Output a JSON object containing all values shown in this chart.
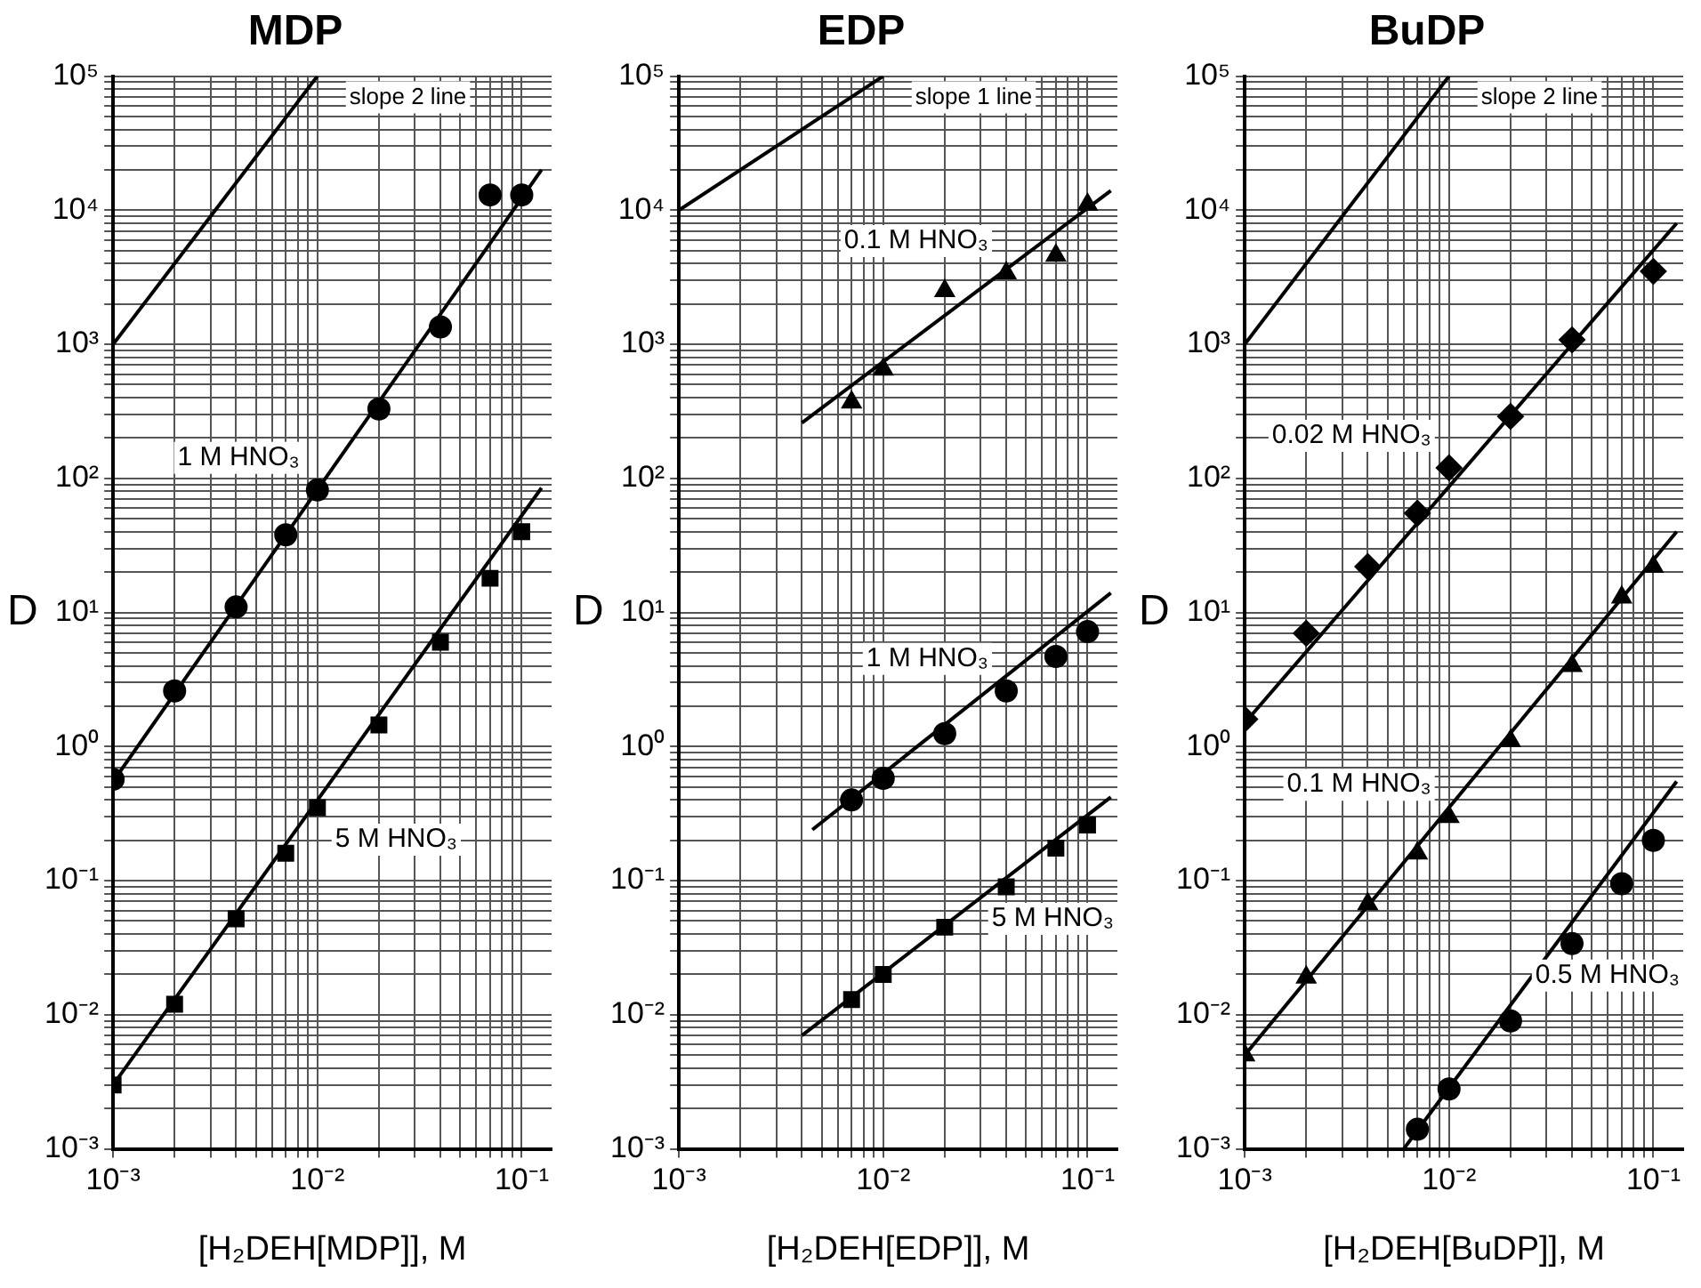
{
  "chart_data": [
    {
      "type": "scatter",
      "title": "MDP",
      "xlabel": "[H₂DEH[MDP]], M",
      "ylabel": "D",
      "log": "xy",
      "grid": true,
      "legend": false,
      "xlim": [
        0.001,
        0.14
      ],
      "ylim": [
        0.001,
        100000
      ],
      "xticks": [
        {
          "value": 0.001,
          "label": "10⁻³"
        },
        {
          "value": 0.002,
          "label": null
        },
        {
          "value": 0.003,
          "label": null
        },
        {
          "value": 0.004,
          "label": null
        },
        {
          "value": 0.005,
          "label": null
        },
        {
          "value": 0.006,
          "label": null
        },
        {
          "value": 0.007,
          "label": null
        },
        {
          "value": 0.008,
          "label": null
        },
        {
          "value": 0.009,
          "label": null
        },
        {
          "value": 0.01,
          "label": "10⁻²"
        },
        {
          "value": 0.02,
          "label": null
        },
        {
          "value": 0.03,
          "label": null
        },
        {
          "value": 0.04,
          "label": null
        },
        {
          "value": 0.05,
          "label": null
        },
        {
          "value": 0.06,
          "label": null
        },
        {
          "value": 0.07,
          "label": null
        },
        {
          "value": 0.08,
          "label": null
        },
        {
          "value": 0.09,
          "label": null
        },
        {
          "value": 0.1,
          "label": "10⁻¹"
        }
      ],
      "yticks": [
        {
          "value": 0.001,
          "label": "10⁻³"
        },
        {
          "value": 0.002,
          "label": null
        },
        {
          "value": 0.003,
          "label": null
        },
        {
          "value": 0.004,
          "label": null
        },
        {
          "value": 0.005,
          "label": null
        },
        {
          "value": 0.006,
          "label": null
        },
        {
          "value": 0.007,
          "label": null
        },
        {
          "value": 0.008,
          "label": null
        },
        {
          "value": 0.009,
          "label": null
        },
        {
          "value": 0.01,
          "label": "10⁻²"
        },
        {
          "value": 0.02,
          "label": null
        },
        {
          "value": 0.03,
          "label": null
        },
        {
          "value": 0.04,
          "label": null
        },
        {
          "value": 0.05,
          "label": null
        },
        {
          "value": 0.06,
          "label": null
        },
        {
          "value": 0.07,
          "label": null
        },
        {
          "value": 0.08,
          "label": null
        },
        {
          "value": 0.09,
          "label": null
        },
        {
          "value": 0.1,
          "label": "10⁻¹"
        },
        {
          "value": 0.2,
          "label": null
        },
        {
          "value": 0.3,
          "label": null
        },
        {
          "value": 0.4,
          "label": null
        },
        {
          "value": 0.5,
          "label": null
        },
        {
          "value": 0.6,
          "label": null
        },
        {
          "value": 0.7,
          "label": null
        },
        {
          "value": 0.8,
          "label": null
        },
        {
          "value": 0.9,
          "label": null
        },
        {
          "value": 1,
          "label": "10⁰"
        },
        {
          "value": 2,
          "label": null
        },
        {
          "value": 3,
          "label": null
        },
        {
          "value": 4,
          "label": null
        },
        {
          "value": 5,
          "label": null
        },
        {
          "value": 6,
          "label": null
        },
        {
          "value": 7,
          "label": null
        },
        {
          "value": 8,
          "label": null
        },
        {
          "value": 9,
          "label": null
        },
        {
          "value": 10,
          "label": "10¹"
        },
        {
          "value": 20,
          "label": null
        },
        {
          "value": 30,
          "label": null
        },
        {
          "value": 40,
          "label": null
        },
        {
          "value": 50,
          "label": null
        },
        {
          "value": 60,
          "label": null
        },
        {
          "value": 70,
          "label": null
        },
        {
          "value": 80,
          "label": null
        },
        {
          "value": 90,
          "label": null
        },
        {
          "value": 100,
          "label": "10²"
        },
        {
          "value": 200,
          "label": null
        },
        {
          "value": 300,
          "label": null
        },
        {
          "value": 400,
          "label": null
        },
        {
          "value": 500,
          "label": null
        },
        {
          "value": 600,
          "label": null
        },
        {
          "value": 700,
          "label": null
        },
        {
          "value": 800,
          "label": null
        },
        {
          "value": 900,
          "label": null
        },
        {
          "value": 1000,
          "label": "10³"
        },
        {
          "value": 2000,
          "label": null
        },
        {
          "value": 3000,
          "label": null
        },
        {
          "value": 4000,
          "label": null
        },
        {
          "value": 5000,
          "label": null
        },
        {
          "value": 6000,
          "label": null
        },
        {
          "value": 7000,
          "label": null
        },
        {
          "value": 8000,
          "label": null
        },
        {
          "value": 9000,
          "label": null
        },
        {
          "value": 10000,
          "label": "10⁴"
        },
        {
          "value": 20000,
          "label": null
        },
        {
          "value": 30000,
          "label": null
        },
        {
          "value": 40000,
          "label": null
        },
        {
          "value": 50000,
          "label": null
        },
        {
          "value": 60000,
          "label": null
        },
        {
          "value": 70000,
          "label": null
        },
        {
          "value": 80000,
          "label": null
        },
        {
          "value": 90000,
          "label": null
        },
        {
          "value": 100000,
          "label": "10⁵"
        }
      ],
      "series": [
        {
          "type": "line",
          "name": "slope 2 line",
          "color": "#000000",
          "x": [
            0.001,
            0.01
          ],
          "values": [
            1000,
            100000
          ]
        },
        {
          "name": "1 M HNO₃",
          "marker": "circle",
          "color": "#000000",
          "x": [
            0.001,
            0.002,
            0.004,
            0.007,
            0.01,
            0.02,
            0.04,
            0.07,
            0.1
          ],
          "values": [
            0.57,
            2.6,
            11,
            38,
            82,
            330,
            1350,
            13000,
            13000
          ]
        },
        {
          "type": "line",
          "color": "#000000",
          "x": [
            0.001,
            0.125
          ],
          "values": [
            0.55,
            20000
          ]
        },
        {
          "name": "5 M HNO₃",
          "marker": "square",
          "color": "#000000",
          "x": [
            0.001,
            0.002,
            0.004,
            0.007,
            0.01,
            0.02,
            0.04,
            0.07,
            0.1
          ],
          "values": [
            0.003,
            0.012,
            0.052,
            0.16,
            0.35,
            1.45,
            6,
            18,
            40
          ]
        },
        {
          "type": "line",
          "color": "#000000",
          "x": [
            0.001,
            0.125
          ],
          "values": [
            0.003,
            85
          ]
        }
      ]
    },
    {
      "type": "scatter",
      "title": "EDP",
      "xlabel": "[H₂DEH[EDP]], M",
      "ylabel": "D",
      "log": "xy",
      "grid": true,
      "legend": false,
      "xlim": [
        0.001,
        0.14
      ],
      "ylim": [
        0.001,
        100000
      ],
      "xticks": [
        {
          "value": 0.001,
          "label": "10⁻³"
        },
        {
          "value": 0.002,
          "label": null
        },
        {
          "value": 0.003,
          "label": null
        },
        {
          "value": 0.004,
          "label": null
        },
        {
          "value": 0.005,
          "label": null
        },
        {
          "value": 0.006,
          "label": null
        },
        {
          "value": 0.007,
          "label": null
        },
        {
          "value": 0.008,
          "label": null
        },
        {
          "value": 0.009,
          "label": null
        },
        {
          "value": 0.01,
          "label": "10⁻²"
        },
        {
          "value": 0.02,
          "label": null
        },
        {
          "value": 0.03,
          "label": null
        },
        {
          "value": 0.04,
          "label": null
        },
        {
          "value": 0.05,
          "label": null
        },
        {
          "value": 0.06,
          "label": null
        },
        {
          "value": 0.07,
          "label": null
        },
        {
          "value": 0.08,
          "label": null
        },
        {
          "value": 0.09,
          "label": null
        },
        {
          "value": 0.1,
          "label": "10⁻¹"
        }
      ],
      "yticks": [
        {
          "value": 0.001,
          "label": "10⁻³"
        },
        {
          "value": 0.002,
          "label": null
        },
        {
          "value": 0.003,
          "label": null
        },
        {
          "value": 0.004,
          "label": null
        },
        {
          "value": 0.005,
          "label": null
        },
        {
          "value": 0.006,
          "label": null
        },
        {
          "value": 0.007,
          "label": null
        },
        {
          "value": 0.008,
          "label": null
        },
        {
          "value": 0.009,
          "label": null
        },
        {
          "value": 0.01,
          "label": "10⁻²"
        },
        {
          "value": 0.02,
          "label": null
        },
        {
          "value": 0.03,
          "label": null
        },
        {
          "value": 0.04,
          "label": null
        },
        {
          "value": 0.05,
          "label": null
        },
        {
          "value": 0.06,
          "label": null
        },
        {
          "value": 0.07,
          "label": null
        },
        {
          "value": 0.08,
          "label": null
        },
        {
          "value": 0.09,
          "label": null
        },
        {
          "value": 0.1,
          "label": "10⁻¹"
        },
        {
          "value": 0.2,
          "label": null
        },
        {
          "value": 0.3,
          "label": null
        },
        {
          "value": 0.4,
          "label": null
        },
        {
          "value": 0.5,
          "label": null
        },
        {
          "value": 0.6,
          "label": null
        },
        {
          "value": 0.7,
          "label": null
        },
        {
          "value": 0.8,
          "label": null
        },
        {
          "value": 0.9,
          "label": null
        },
        {
          "value": 1,
          "label": "10⁰"
        },
        {
          "value": 2,
          "label": null
        },
        {
          "value": 3,
          "label": null
        },
        {
          "value": 4,
          "label": null
        },
        {
          "value": 5,
          "label": null
        },
        {
          "value": 6,
          "label": null
        },
        {
          "value": 7,
          "label": null
        },
        {
          "value": 8,
          "label": null
        },
        {
          "value": 9,
          "label": null
        },
        {
          "value": 10,
          "label": "10¹"
        },
        {
          "value": 20,
          "label": null
        },
        {
          "value": 30,
          "label": null
        },
        {
          "value": 40,
          "label": null
        },
        {
          "value": 50,
          "label": null
        },
        {
          "value": 60,
          "label": null
        },
        {
          "value": 70,
          "label": null
        },
        {
          "value": 80,
          "label": null
        },
        {
          "value": 90,
          "label": null
        },
        {
          "value": 100,
          "label": "10²"
        },
        {
          "value": 200,
          "label": null
        },
        {
          "value": 300,
          "label": null
        },
        {
          "value": 400,
          "label": null
        },
        {
          "value": 500,
          "label": null
        },
        {
          "value": 600,
          "label": null
        },
        {
          "value": 700,
          "label": null
        },
        {
          "value": 800,
          "label": null
        },
        {
          "value": 900,
          "label": null
        },
        {
          "value": 1000,
          "label": "10³"
        },
        {
          "value": 2000,
          "label": null
        },
        {
          "value": 3000,
          "label": null
        },
        {
          "value": 4000,
          "label": null
        },
        {
          "value": 5000,
          "label": null
        },
        {
          "value": 6000,
          "label": null
        },
        {
          "value": 7000,
          "label": null
        },
        {
          "value": 8000,
          "label": null
        },
        {
          "value": 9000,
          "label": null
        },
        {
          "value": 10000,
          "label": "10⁴"
        },
        {
          "value": 20000,
          "label": null
        },
        {
          "value": 30000,
          "label": null
        },
        {
          "value": 40000,
          "label": null
        },
        {
          "value": 50000,
          "label": null
        },
        {
          "value": 60000,
          "label": null
        },
        {
          "value": 70000,
          "label": null
        },
        {
          "value": 80000,
          "label": null
        },
        {
          "value": 90000,
          "label": null
        },
        {
          "value": 100000,
          "label": "10⁵"
        }
      ],
      "series": [
        {
          "type": "line",
          "name": "slope 1 line",
          "color": "#000000",
          "x": [
            0.001,
            0.01
          ],
          "values": [
            10000,
            100000
          ]
        },
        {
          "name": "0.1 M HNO₃",
          "marker": "triangle",
          "color": "#000000",
          "x": [
            0.007,
            0.01,
            0.02,
            0.04,
            0.07,
            0.1
          ],
          "values": [
            370,
            650,
            2500,
            3400,
            4600,
            11000
          ]
        },
        {
          "type": "line",
          "color": "#000000",
          "x": [
            0.004,
            0.13
          ],
          "values": [
            260,
            14000
          ]
        },
        {
          "name": "1 M HNO₃",
          "marker": "circle",
          "color": "#000000",
          "x": [
            0.007,
            0.01,
            0.02,
            0.04,
            0.07,
            0.1
          ],
          "values": [
            0.4,
            0.58,
            1.25,
            2.6,
            4.7,
            7.2
          ]
        },
        {
          "type": "line",
          "color": "#000000",
          "x": [
            0.0045,
            0.13
          ],
          "values": [
            0.24,
            14
          ]
        },
        {
          "name": "5 M HNO₃",
          "marker": "square",
          "color": "#000000",
          "x": [
            0.007,
            0.01,
            0.02,
            0.04,
            0.07,
            0.1
          ],
          "values": [
            0.013,
            0.02,
            0.045,
            0.09,
            0.175,
            0.26
          ]
        },
        {
          "type": "line",
          "color": "#000000",
          "x": [
            0.004,
            0.13
          ],
          "values": [
            0.007,
            0.42
          ]
        }
      ]
    },
    {
      "type": "scatter",
      "title": "BuDP",
      "xlabel": "[H₂DEH[BuDP]], M",
      "ylabel": "D",
      "log": "xy",
      "grid": true,
      "legend": false,
      "xlim": [
        0.001,
        0.14
      ],
      "ylim": [
        0.001,
        100000
      ],
      "xticks": [
        {
          "value": 0.001,
          "label": "10⁻³"
        },
        {
          "value": 0.002,
          "label": null
        },
        {
          "value": 0.003,
          "label": null
        },
        {
          "value": 0.004,
          "label": null
        },
        {
          "value": 0.005,
          "label": null
        },
        {
          "value": 0.006,
          "label": null
        },
        {
          "value": 0.007,
          "label": null
        },
        {
          "value": 0.008,
          "label": null
        },
        {
          "value": 0.009,
          "label": null
        },
        {
          "value": 0.01,
          "label": "10⁻²"
        },
        {
          "value": 0.02,
          "label": null
        },
        {
          "value": 0.03,
          "label": null
        },
        {
          "value": 0.04,
          "label": null
        },
        {
          "value": 0.05,
          "label": null
        },
        {
          "value": 0.06,
          "label": null
        },
        {
          "value": 0.07,
          "label": null
        },
        {
          "value": 0.08,
          "label": null
        },
        {
          "value": 0.09,
          "label": null
        },
        {
          "value": 0.1,
          "label": "10⁻¹"
        }
      ],
      "yticks": [
        {
          "value": 0.001,
          "label": "10⁻³"
        },
        {
          "value": 0.002,
          "label": null
        },
        {
          "value": 0.003,
          "label": null
        },
        {
          "value": 0.004,
          "label": null
        },
        {
          "value": 0.005,
          "label": null
        },
        {
          "value": 0.006,
          "label": null
        },
        {
          "value": 0.007,
          "label": null
        },
        {
          "value": 0.008,
          "label": null
        },
        {
          "value": 0.009,
          "label": null
        },
        {
          "value": 0.01,
          "label": "10⁻²"
        },
        {
          "value": 0.02,
          "label": null
        },
        {
          "value": 0.03,
          "label": null
        },
        {
          "value": 0.04,
          "label": null
        },
        {
          "value": 0.05,
          "label": null
        },
        {
          "value": 0.06,
          "label": null
        },
        {
          "value": 0.07,
          "label": null
        },
        {
          "value": 0.08,
          "label": null
        },
        {
          "value": 0.09,
          "label": null
        },
        {
          "value": 0.1,
          "label": "10⁻¹"
        },
        {
          "value": 0.2,
          "label": null
        },
        {
          "value": 0.3,
          "label": null
        },
        {
          "value": 0.4,
          "label": null
        },
        {
          "value": 0.5,
          "label": null
        },
        {
          "value": 0.6,
          "label": null
        },
        {
          "value": 0.7,
          "label": null
        },
        {
          "value": 0.8,
          "label": null
        },
        {
          "value": 0.9,
          "label": null
        },
        {
          "value": 1,
          "label": "10⁰"
        },
        {
          "value": 2,
          "label": null
        },
        {
          "value": 3,
          "label": null
        },
        {
          "value": 4,
          "label": null
        },
        {
          "value": 5,
          "label": null
        },
        {
          "value": 6,
          "label": null
        },
        {
          "value": 7,
          "label": null
        },
        {
          "value": 8,
          "label": null
        },
        {
          "value": 9,
          "label": null
        },
        {
          "value": 10,
          "label": "10¹"
        },
        {
          "value": 20,
          "label": null
        },
        {
          "value": 30,
          "label": null
        },
        {
          "value": 40,
          "label": null
        },
        {
          "value": 50,
          "label": null
        },
        {
          "value": 60,
          "label": null
        },
        {
          "value": 70,
          "label": null
        },
        {
          "value": 80,
          "label": null
        },
        {
          "value": 90,
          "label": null
        },
        {
          "value": 100,
          "label": "10²"
        },
        {
          "value": 200,
          "label": null
        },
        {
          "value": 300,
          "label": null
        },
        {
          "value": 400,
          "label": null
        },
        {
          "value": 500,
          "label": null
        },
        {
          "value": 600,
          "label": null
        },
        {
          "value": 700,
          "label": null
        },
        {
          "value": 800,
          "label": null
        },
        {
          "value": 900,
          "label": null
        },
        {
          "value": 1000,
          "label": "10³"
        },
        {
          "value": 2000,
          "label": null
        },
        {
          "value": 3000,
          "label": null
        },
        {
          "value": 4000,
          "label": null
        },
        {
          "value": 5000,
          "label": null
        },
        {
          "value": 6000,
          "label": null
        },
        {
          "value": 7000,
          "label": null
        },
        {
          "value": 8000,
          "label": null
        },
        {
          "value": 9000,
          "label": null
        },
        {
          "value": 10000,
          "label": "10⁴"
        },
        {
          "value": 20000,
          "label": null
        },
        {
          "value": 30000,
          "label": null
        },
        {
          "value": 40000,
          "label": null
        },
        {
          "value": 50000,
          "label": null
        },
        {
          "value": 60000,
          "label": null
        },
        {
          "value": 70000,
          "label": null
        },
        {
          "value": 80000,
          "label": null
        },
        {
          "value": 90000,
          "label": null
        },
        {
          "value": 100000,
          "label": "10⁵"
        }
      ],
      "series": [
        {
          "type": "line",
          "name": "slope 2 line",
          "color": "#000000",
          "x": [
            0.001,
            0.01
          ],
          "values": [
            1000,
            100000
          ]
        },
        {
          "name": "0.02 M HNO₃",
          "marker": "diamond",
          "color": "#000000",
          "x": [
            0.001,
            0.002,
            0.004,
            0.007,
            0.01,
            0.02,
            0.04,
            0.1
          ],
          "values": [
            1.6,
            7,
            22,
            55,
            120,
            290,
            1080,
            3500
          ]
        },
        {
          "type": "line",
          "color": "#000000",
          "x": [
            0.001,
            0.13
          ],
          "values": [
            1.5,
            8000
          ]
        },
        {
          "name": "0.1 M HNO₃",
          "marker": "triangle",
          "color": "#000000",
          "x": [
            0.001,
            0.002,
            0.004,
            0.007,
            0.01,
            0.02,
            0.04,
            0.07,
            0.1
          ],
          "values": [
            0.005,
            0.019,
            0.067,
            0.16,
            0.3,
            1.1,
            4,
            13,
            22
          ]
        },
        {
          "type": "line",
          "color": "#000000",
          "x": [
            0.001,
            0.13
          ],
          "values": [
            0.005,
            40
          ]
        },
        {
          "name": "0.5 M HNO₃",
          "marker": "circle",
          "color": "#000000",
          "x": [
            0.007,
            0.01,
            0.02,
            0.04,
            0.07,
            0.1
          ],
          "values": [
            0.0014,
            0.0028,
            0.009,
            0.034,
            0.095,
            0.2
          ]
        },
        {
          "type": "line",
          "color": "#000000",
          "x": [
            0.006,
            0.13
          ],
          "values": [
            0.001,
            0.55
          ]
        }
      ]
    }
  ]
}
